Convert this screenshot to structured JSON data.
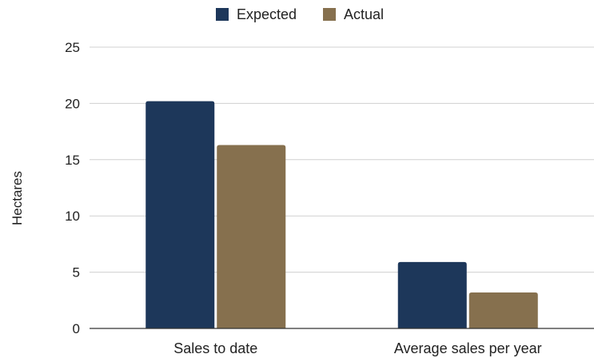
{
  "chart_data": {
    "type": "bar",
    "title": "",
    "xlabel": "",
    "ylabel": "Hectares",
    "ylim": [
      0,
      25
    ],
    "yticks": [
      0,
      5,
      10,
      15,
      20,
      25
    ],
    "grid": true,
    "legend_position": "top",
    "categories": [
      "Sales to date",
      "Average sales per year"
    ],
    "series": [
      {
        "name": "Expected",
        "color": "#1d375a",
        "values": [
          20.2,
          5.9
        ]
      },
      {
        "name": "Actual",
        "color": "#86704e",
        "values": [
          16.3,
          3.2
        ]
      }
    ]
  }
}
